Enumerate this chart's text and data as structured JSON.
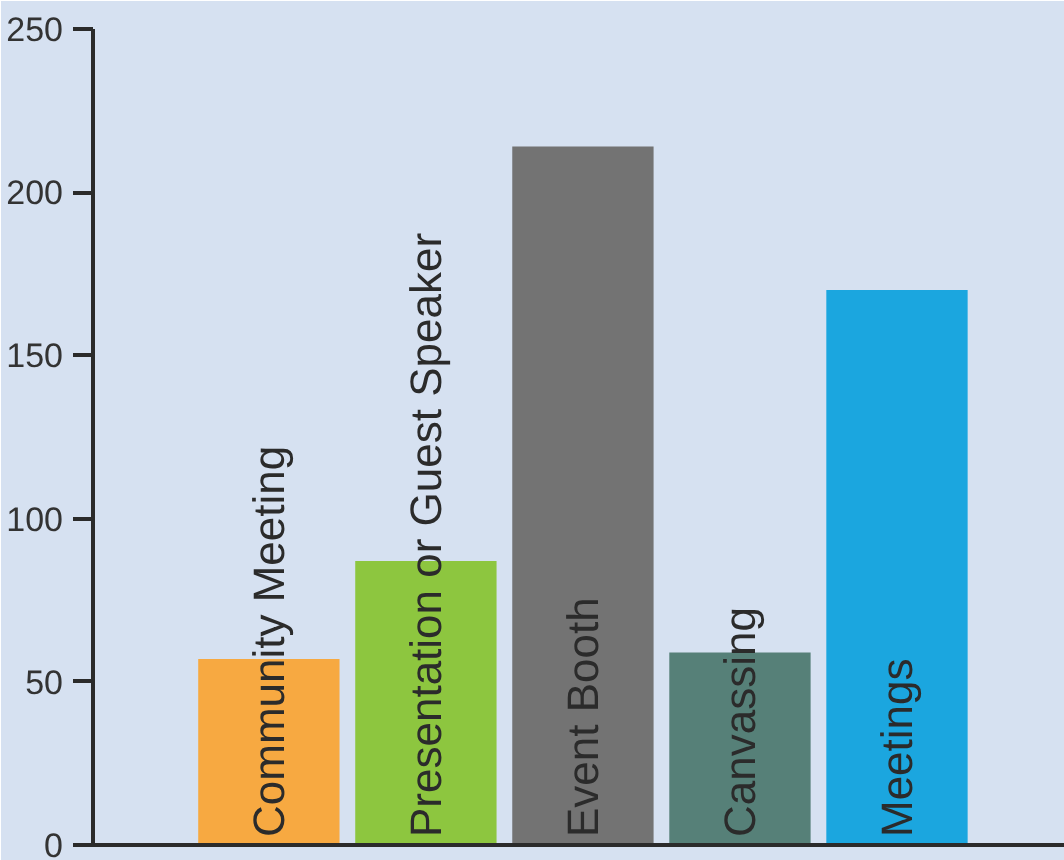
{
  "chart_data": {
    "type": "bar",
    "categories": [
      "Community Meeting",
      "Presentation or Guest Speaker",
      "Event Booth",
      "Canvassing",
      "Meetings"
    ],
    "values": [
      57,
      87,
      214,
      59,
      170
    ],
    "colors": [
      "#f7a941",
      "#8dc63f",
      "#737373",
      "#568078",
      "#1ba6df"
    ],
    "ylim": [
      0,
      250
    ],
    "yticks": [
      0,
      50,
      100,
      150,
      200,
      250
    ],
    "grid": false
  }
}
